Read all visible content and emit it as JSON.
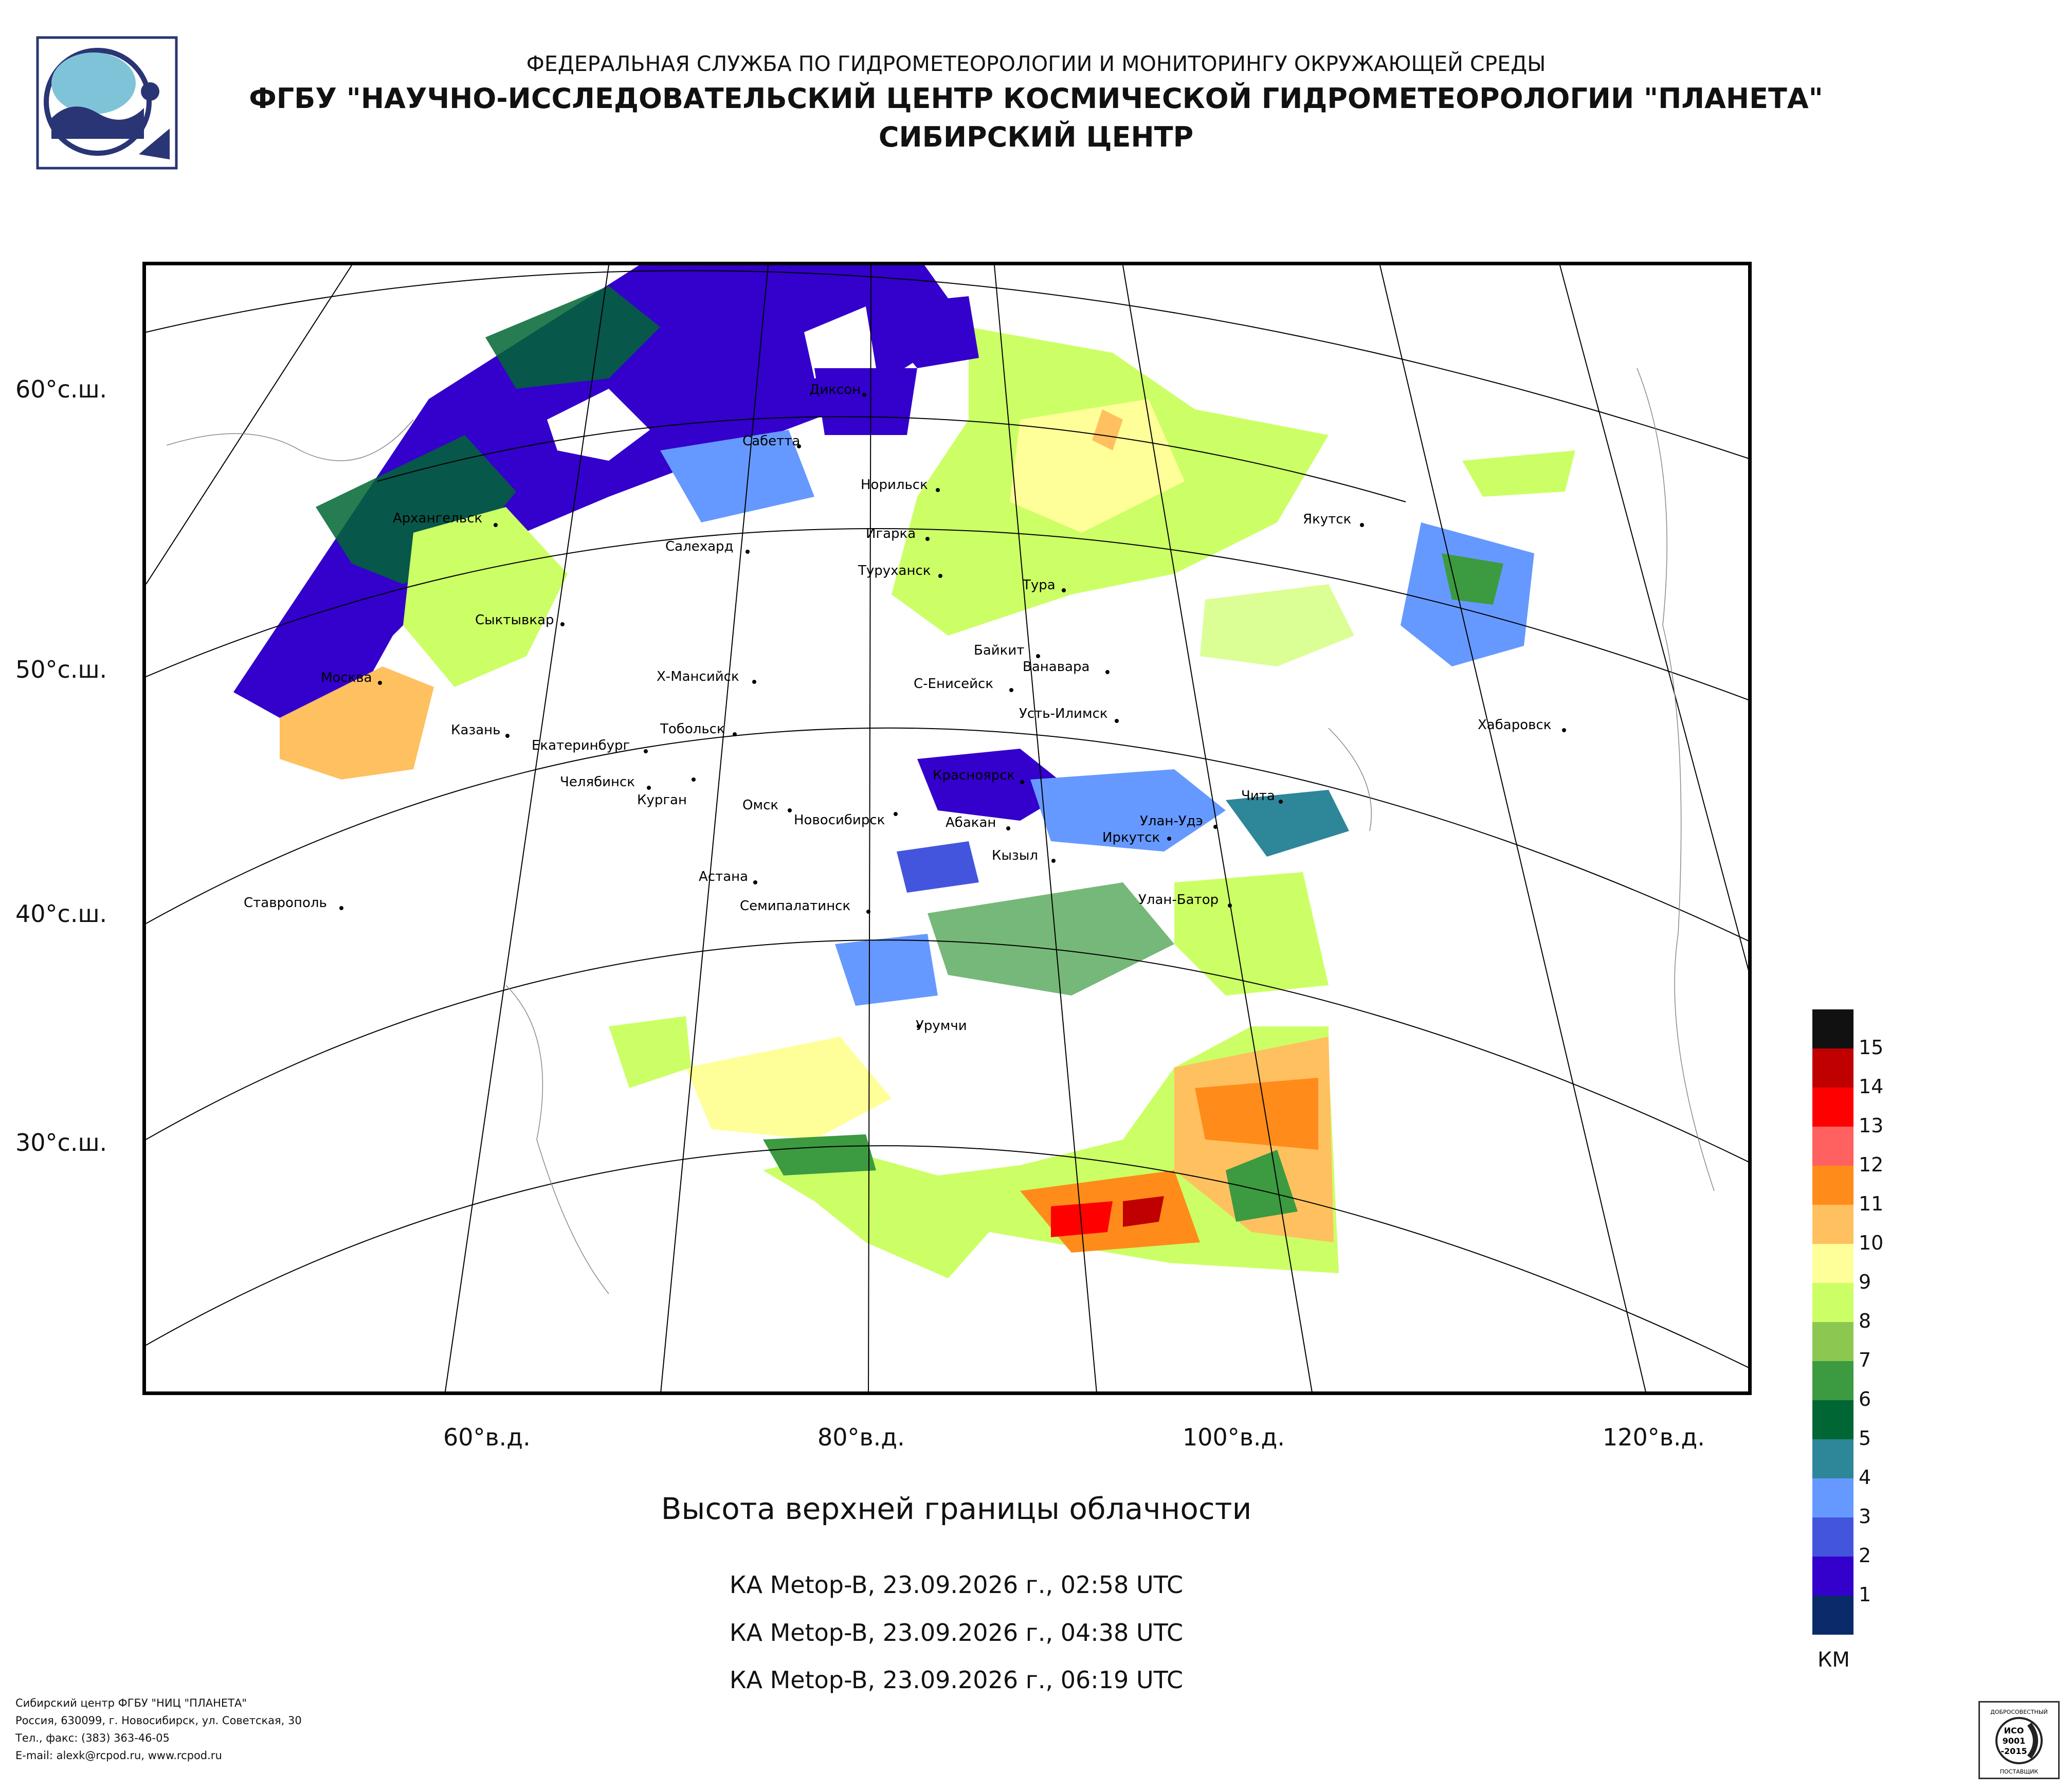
{
  "header": {
    "agency": "ФЕДЕРАЛЬНАЯ СЛУЖБА ПО ГИДРОМЕТЕОРОЛОГИИ И МОНИТОРИНГУ ОКРУЖАЮЩЕЙ СРЕДЫ",
    "institute": "ФГБУ \"НАУЧНО-ИССЛЕДОВАТЕЛЬСКИЙ ЦЕНТР КОСМИЧЕСКОЙ ГИДРОМЕТЕОРОЛОГИИ \"ПЛАНЕТА\"",
    "branch": "СИБИРСКИЙ ЦЕНТР"
  },
  "map": {
    "lat_labels": [
      "60°с.ш.",
      "50°с.ш.",
      "40°с.ш.",
      "30°с.ш."
    ],
    "lon_labels": [
      "60°в.д.",
      "80°в.д.",
      "100°в.д.",
      "120°в.д."
    ],
    "cities": {
      "dikson": "Диксон",
      "sabeta": "Сабетта",
      "norilsk": "Норильск",
      "arkhangelsk": "Архангельск",
      "igarka": "Игарка",
      "salekhard": "Салехард",
      "turukhansk": "Туруханск",
      "yakutsk": "Якутск",
      "tura": "Тура",
      "syktyvkar": "Сыктывкар",
      "baikit": "Байкит",
      "vanavara": "Ванавара",
      "moskva": "Москва",
      "khmansiysk": "Х-Мансийск",
      "seniseysk": "С-Енисейск",
      "ustilimsk": "Усть-Илимск",
      "khabarovsk": "Хабаровск",
      "kazan": "Казань",
      "tobolsk": "Тобольск",
      "ekaterinburg": "Екатеринбург",
      "chelyabinsk": "Челябинск",
      "kurgan": "Курган",
      "krasnoyarsk": "Красноярск",
      "chita": "Чита",
      "omsk": "Омск",
      "novosibirsk": "Новосибирск",
      "abakan": "Абакан",
      "ulanude": "Улан-Удэ",
      "irkutsk": "Иркутск",
      "kyzyl": "Кызыл",
      "astana": "Астана",
      "stavropol": "Ставрополь",
      "semipalatinsk": "Семипалатинск",
      "ulanbator": "Улан-Батор",
      "urumchi": "Урумчи"
    }
  },
  "caption": {
    "title": "Высота верхней границы облачности",
    "passes": [
      "КА Metop-B, 23.09.2026 г., 02:58 UTC",
      "КА Metop-B, 23.09.2026 г., 04:38 UTC",
      "КА Metop-B, 23.09.2026 г., 06:19 UTC"
    ]
  },
  "legend": {
    "unit": "КМ",
    "levels": [
      {
        "label": "15",
        "color": "#111111"
      },
      {
        "label": "14",
        "color": "#c00000"
      },
      {
        "label": "13",
        "color": "#ff0000"
      },
      {
        "label": "12",
        "color": "#ff6060"
      },
      {
        "label": "11",
        "color": "#ff8c1a"
      },
      {
        "label": "10",
        "color": "#ffc060"
      },
      {
        "label": "9",
        "color": "#ffff99"
      },
      {
        "label": "8",
        "color": "#ccff66"
      },
      {
        "label": "7",
        "color": "#8cc850"
      },
      {
        "label": "6",
        "color": "#3c9a40"
      },
      {
        "label": "5",
        "color": "#006633"
      },
      {
        "label": "4",
        "color": "#2e8699"
      },
      {
        "label": "3",
        "color": "#6699ff"
      },
      {
        "label": "2",
        "color": "#4455dd"
      },
      {
        "label": "1",
        "color": "#3300cc"
      },
      {
        "label": "",
        "color": "#0a2a6a"
      }
    ]
  },
  "footer": {
    "line1": "Сибирский центр ФГБУ \"НИЦ \"ПЛАНЕТА\"",
    "line2": "Россия, 630099, г. Новосибирск, ул. Советская, 30",
    "line3": "Тел., факс: (383) 363-46-05",
    "line4": "E-mail: alexk@rcpod.ru, www.rcpod.ru"
  },
  "iso_badge": {
    "top": "ДОБРОСОВЕСТНЫЙ",
    "mid1": "ИСО",
    "mid2": "9001",
    "mid3": "-2015",
    "bottom": "ПОСТАВЩИК"
  }
}
